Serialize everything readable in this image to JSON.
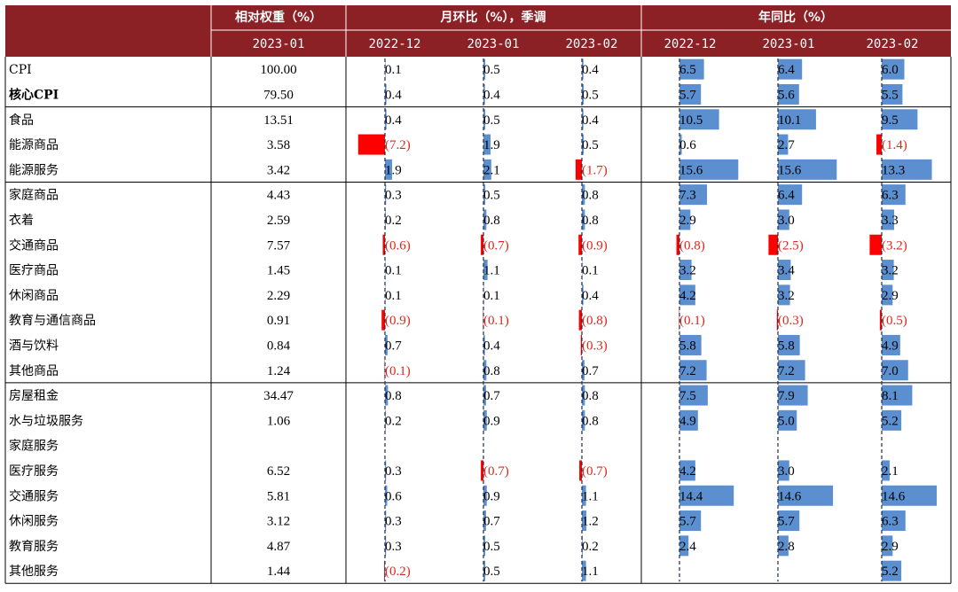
{
  "header": {
    "weight_group": "相对权重（%）",
    "mom_group": "月环比（%），季调",
    "yoy_group": "年同比（%）",
    "weight_period": "2023-01",
    "mom_periods": [
      "2022-12",
      "2023-01",
      "2023-02"
    ],
    "yoy_periods": [
      "2022-12",
      "2023-01",
      "2023-02"
    ]
  },
  "colors": {
    "header_bg": "#8B2025",
    "positive_bar": "#5B8FD0",
    "negative_bar": "#FF0000",
    "negative_text": "#E0261B"
  },
  "chart_data": {
    "type": "table",
    "rows": [
      {
        "label": "CPI",
        "bold": false,
        "weight": "100.00",
        "mom": [
          0.1,
          0.5,
          0.4
        ],
        "yoy": [
          6.5,
          6.4,
          6.0
        ]
      },
      {
        "label": "核心CPI",
        "bold": true,
        "weight": "79.50",
        "mom": [
          0.4,
          0.4,
          0.5
        ],
        "yoy": [
          5.7,
          5.6,
          5.5
        ]
      },
      {
        "label": "食品",
        "bold": false,
        "weight": "13.51",
        "mom": [
          0.4,
          0.5,
          0.4
        ],
        "yoy": [
          10.5,
          10.1,
          9.5
        ]
      },
      {
        "label": "能源商品",
        "bold": false,
        "weight": "3.58",
        "mom": [
          -7.2,
          1.9,
          0.5
        ],
        "yoy": [
          0.6,
          2.7,
          -1.4
        ]
      },
      {
        "label": "能源服务",
        "bold": false,
        "weight": "3.42",
        "mom": [
          1.9,
          2.1,
          -1.7
        ],
        "yoy": [
          15.6,
          15.6,
          13.3
        ]
      },
      {
        "label": "家庭商品",
        "bold": false,
        "weight": "4.43",
        "mom": [
          0.3,
          0.5,
          0.8
        ],
        "yoy": [
          7.3,
          6.4,
          6.3
        ]
      },
      {
        "label": "衣着",
        "bold": false,
        "weight": "2.59",
        "mom": [
          0.2,
          0.8,
          0.8
        ],
        "yoy": [
          2.9,
          3.0,
          3.3
        ]
      },
      {
        "label": "交通商品",
        "bold": false,
        "weight": "7.57",
        "mom": [
          -0.6,
          -0.7,
          -0.9
        ],
        "yoy": [
          -0.8,
          -2.5,
          -3.2
        ]
      },
      {
        "label": "医疗商品",
        "bold": false,
        "weight": "1.45",
        "mom": [
          0.1,
          1.1,
          0.1
        ],
        "yoy": [
          3.2,
          3.4,
          3.2
        ]
      },
      {
        "label": "休闲商品",
        "bold": false,
        "weight": "2.29",
        "mom": [
          0.1,
          0.1,
          0.4
        ],
        "yoy": [
          4.2,
          3.2,
          2.9
        ]
      },
      {
        "label": "教育与通信商品",
        "bold": false,
        "weight": "0.91",
        "mom": [
          -0.9,
          -0.1,
          -0.8
        ],
        "yoy": [
          -0.1,
          -0.3,
          -0.5
        ]
      },
      {
        "label": "酒与饮料",
        "bold": false,
        "weight": "0.84",
        "mom": [
          0.7,
          0.4,
          -0.3
        ],
        "yoy": [
          5.8,
          5.8,
          4.9
        ]
      },
      {
        "label": "其他商品",
        "bold": false,
        "weight": "1.24",
        "mom": [
          -0.1,
          0.8,
          0.7
        ],
        "yoy": [
          7.2,
          7.2,
          7.0
        ]
      },
      {
        "label": "房屋租金",
        "bold": false,
        "weight": "34.47",
        "mom": [
          0.8,
          0.7,
          0.8
        ],
        "yoy": [
          7.5,
          7.9,
          8.1
        ]
      },
      {
        "label": "水与垃圾服务",
        "bold": false,
        "weight": "1.06",
        "mom": [
          0.2,
          0.9,
          0.8
        ],
        "yoy": [
          4.9,
          5.0,
          5.2
        ]
      },
      {
        "label": "家庭服务",
        "bold": false,
        "weight": "",
        "mom": [
          null,
          null,
          null
        ],
        "yoy": [
          null,
          null,
          null
        ]
      },
      {
        "label": "医疗服务",
        "bold": false,
        "weight": "6.52",
        "mom": [
          0.3,
          -0.7,
          -0.7
        ],
        "yoy": [
          4.2,
          3.0,
          2.1
        ]
      },
      {
        "label": "交通服务",
        "bold": false,
        "weight": "5.81",
        "mom": [
          0.6,
          0.9,
          1.1
        ],
        "yoy": [
          14.4,
          14.6,
          14.6
        ]
      },
      {
        "label": "休闲服务",
        "bold": false,
        "weight": "3.12",
        "mom": [
          0.3,
          0.7,
          1.2
        ],
        "yoy": [
          5.7,
          5.7,
          6.3
        ]
      },
      {
        "label": "教育服务",
        "bold": false,
        "weight": "4.87",
        "mom": [
          0.3,
          0.5,
          0.2
        ],
        "yoy": [
          2.4,
          2.8,
          2.9
        ]
      },
      {
        "label": "其他服务",
        "bold": false,
        "weight": "1.44",
        "mom": [
          -0.2,
          0.5,
          1.1
        ],
        "yoy": [
          null,
          null,
          5.2
        ]
      }
    ]
  }
}
